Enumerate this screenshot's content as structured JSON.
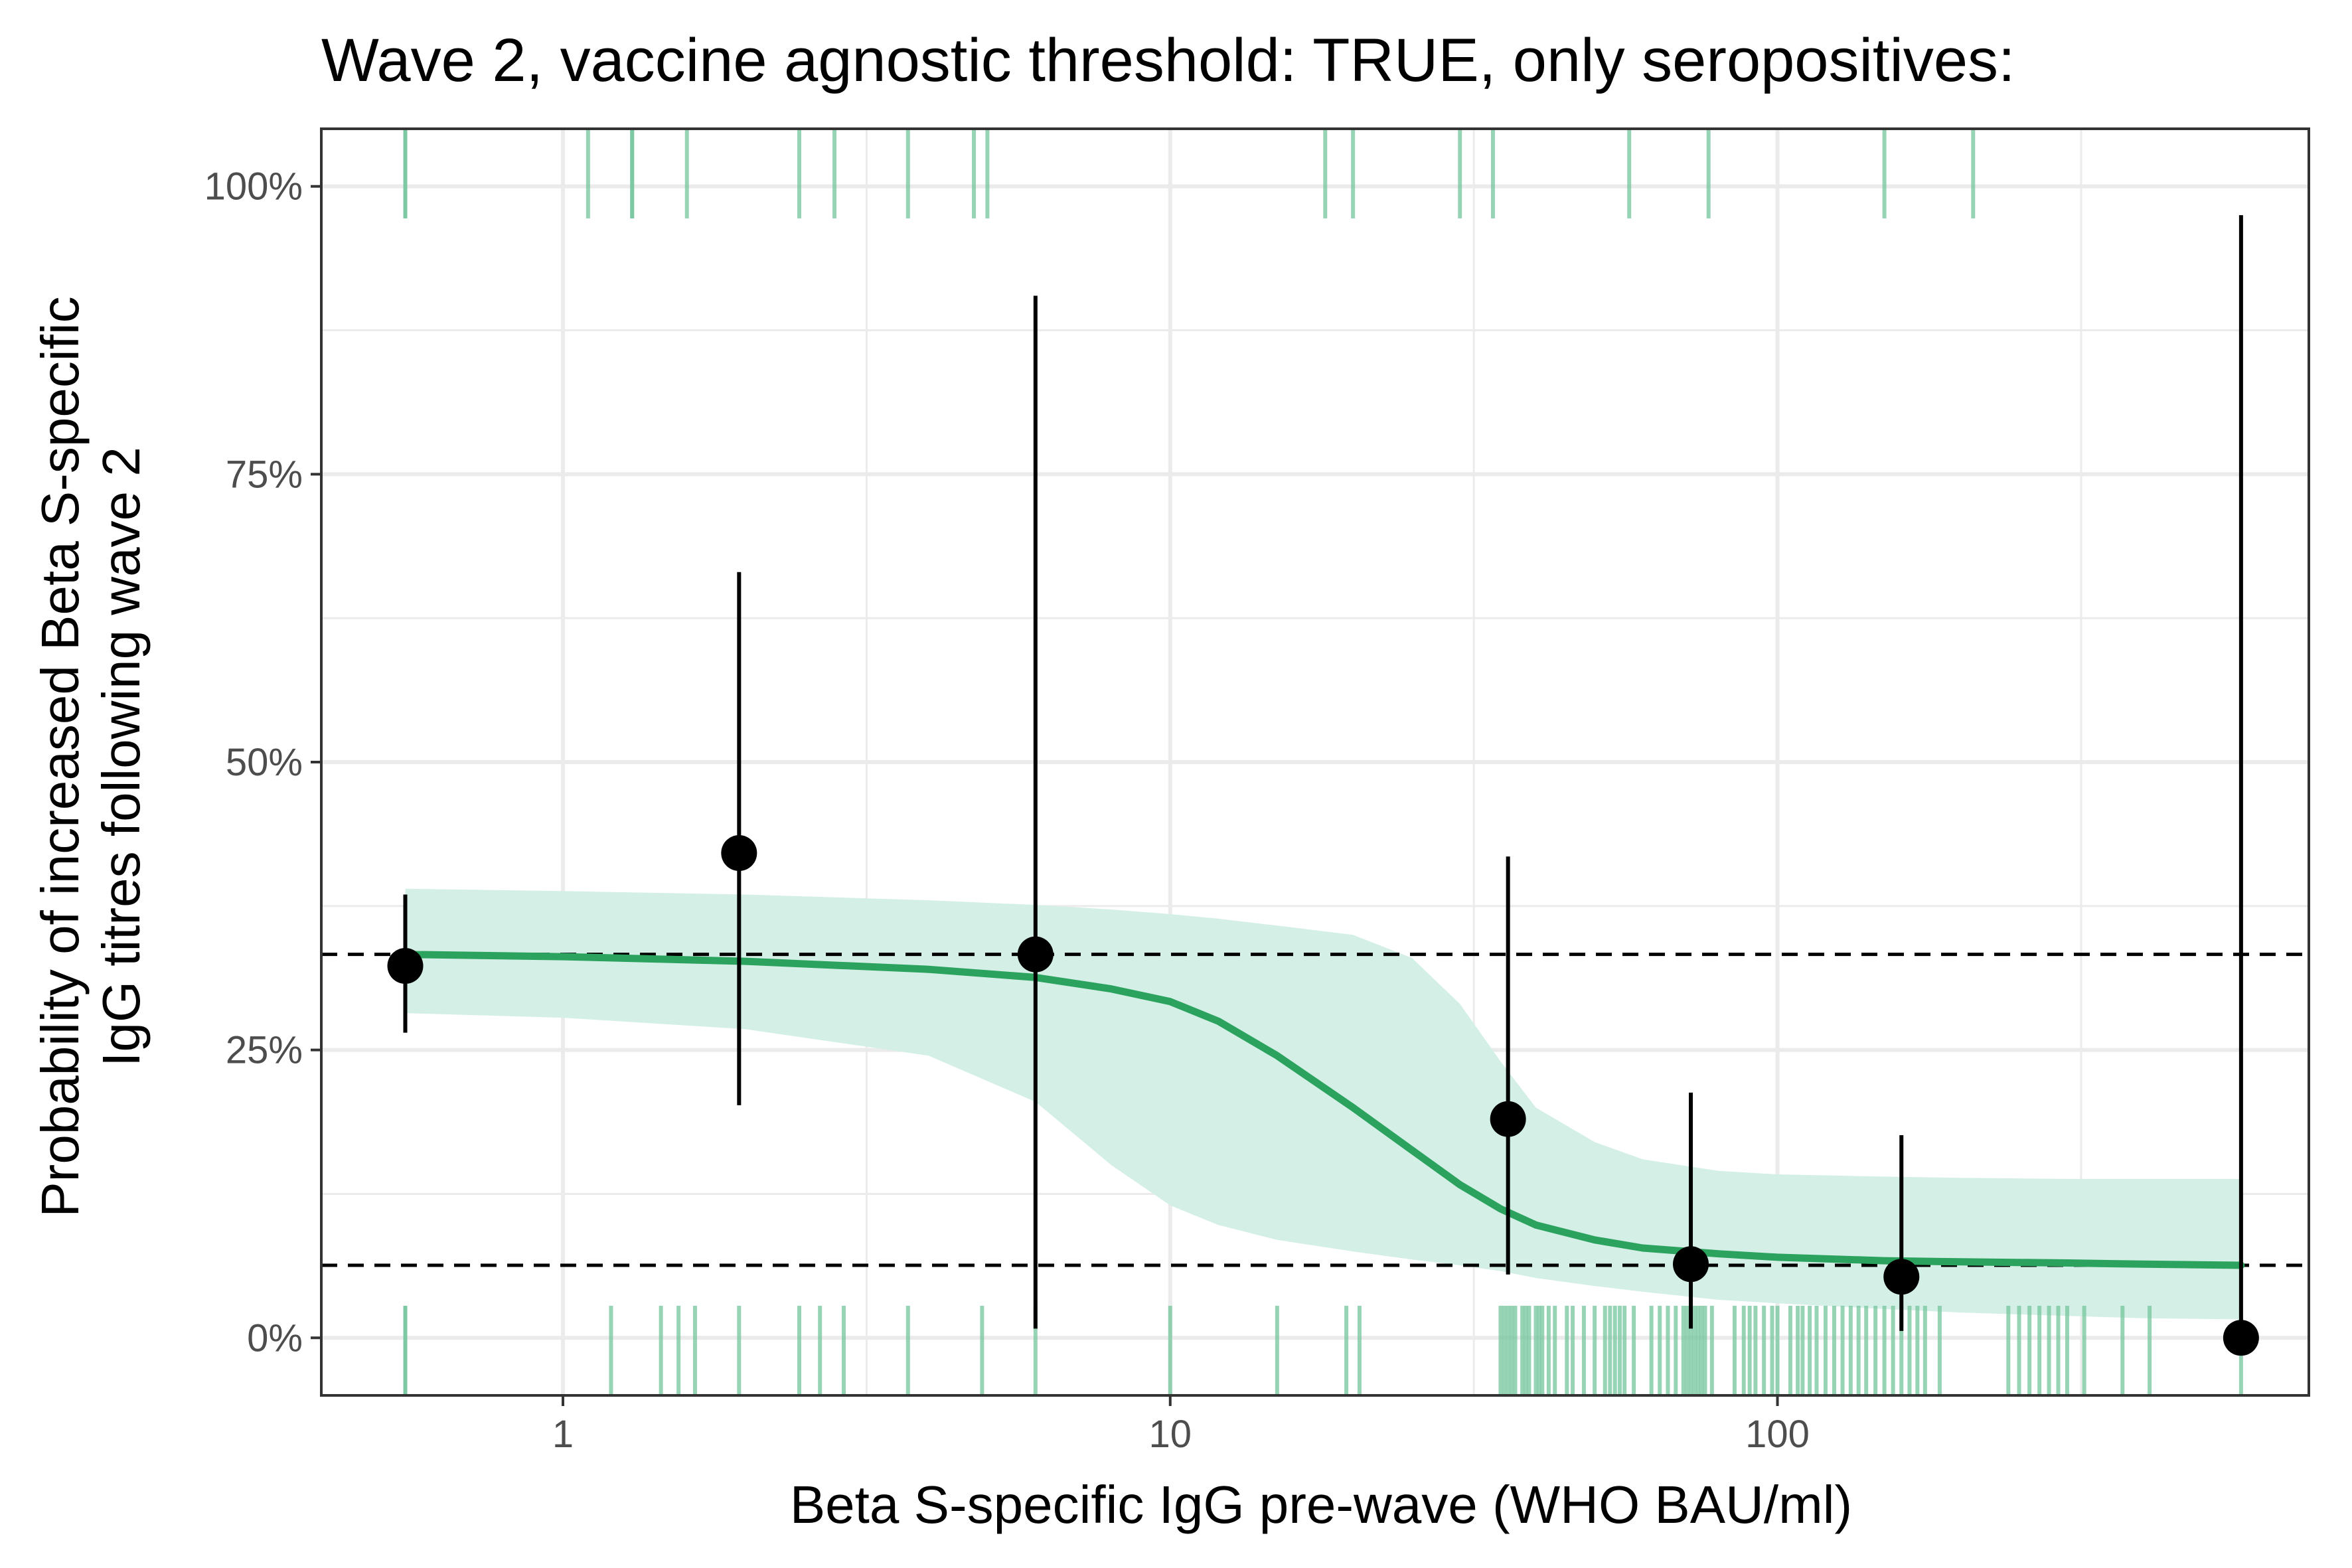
{
  "chart_data": {
    "type": "scatter",
    "title": "Wave 2, vaccine agnostic threshold: TRUE, only seropositives:",
    "xlabel": "Beta S-specific IgG pre-wave (WHO BAU/ml)",
    "ylabel_lines": [
      "Probability of increased Beta S-specific",
      "IgG titres following wave 2"
    ],
    "x_scale": "log10",
    "xlim": [
      0.4,
      750
    ],
    "ylim": [
      -0.05,
      1.05
    ],
    "x_ticks": [
      1,
      10,
      100
    ],
    "x_tick_labels": [
      "1",
      "10",
      "100"
    ],
    "y_ticks": [
      0,
      0.25,
      0.5,
      0.75,
      1.0
    ],
    "y_tick_labels": [
      "0%",
      "25%",
      "50%",
      "75%",
      "100%"
    ],
    "grid": true,
    "colors": {
      "fit_line": "#2ca25f",
      "ribbon": "#d4efe6",
      "rug": "#74c69d",
      "points": "#000000",
      "reference_lines": "#000000",
      "grid": "#ebebeb",
      "panel_border": "#333333"
    },
    "reference_lines": [
      0.333,
      0.063
    ],
    "binned_points": [
      {
        "x": 0.55,
        "y": 0.323,
        "ymin": 0.265,
        "ymax": 0.385
      },
      {
        "x": 1.95,
        "y": 0.421,
        "ymin": 0.202,
        "ymax": 0.665
      },
      {
        "x": 6.0,
        "y": 0.333,
        "ymin": 0.008,
        "ymax": 0.905
      },
      {
        "x": 36.0,
        "y": 0.19,
        "ymin": 0.055,
        "ymax": 0.418
      },
      {
        "x": 72.0,
        "y": 0.064,
        "ymin": 0.008,
        "ymax": 0.213
      },
      {
        "x": 160.0,
        "y": 0.053,
        "ymin": 0.006,
        "ymax": 0.176
      },
      {
        "x": 580.0,
        "y": 0.0,
        "ymin": 0.0,
        "ymax": 0.975
      }
    ],
    "fit_curve": {
      "x": [
        0.55,
        1,
        2,
        4,
        6,
        8,
        10,
        12,
        15,
        20,
        25,
        30,
        35,
        40,
        50,
        60,
        80,
        100,
        150,
        200,
        300,
        400,
        580
      ],
      "y": [
        0.333,
        0.331,
        0.327,
        0.32,
        0.313,
        0.303,
        0.292,
        0.275,
        0.245,
        0.2,
        0.163,
        0.133,
        0.112,
        0.098,
        0.085,
        0.078,
        0.073,
        0.07,
        0.067,
        0.066,
        0.065,
        0.064,
        0.063
      ],
      "ymin": [
        0.282,
        0.278,
        0.268,
        0.245,
        0.205,
        0.15,
        0.115,
        0.098,
        0.085,
        0.075,
        0.068,
        0.063,
        0.058,
        0.052,
        0.045,
        0.04,
        0.033,
        0.03,
        0.025,
        0.022,
        0.019,
        0.017,
        0.016
      ],
      "ymax": [
        0.39,
        0.388,
        0.385,
        0.38,
        0.376,
        0.372,
        0.368,
        0.364,
        0.358,
        0.35,
        0.33,
        0.29,
        0.24,
        0.2,
        0.17,
        0.155,
        0.145,
        0.142,
        0.14,
        0.139,
        0.138,
        0.138,
        0.138
      ]
    },
    "rug_top": [
      0.55,
      0.55,
      1.1,
      1.3,
      1.3,
      1.6,
      2.45,
      2.8,
      3.7,
      4.75,
      5.0,
      18,
      20,
      30,
      34,
      57,
      77,
      150,
      210
    ],
    "rug_bottom": [
      0.55,
      0.55,
      1.2,
      1.45,
      1.55,
      1.65,
      1.95,
      2.45,
      2.65,
      2.9,
      3.7,
      4.9,
      6.0,
      10.0,
      15.0,
      19.5,
      20.5,
      35,
      35.5,
      36,
      36.5,
      37,
      38,
      38.5,
      39,
      40,
      40.5,
      41,
      42,
      43,
      45,
      46,
      48,
      50,
      52,
      53,
      54,
      55,
      56,
      58,
      62,
      64,
      66,
      68,
      70,
      71,
      72,
      73,
      74,
      75,
      76,
      78,
      85,
      88,
      90,
      92,
      95,
      98,
      100,
      105,
      108,
      110,
      113,
      116,
      120,
      124,
      128,
      132,
      136,
      140,
      145,
      150,
      155,
      160,
      165,
      170,
      175,
      185,
      240,
      250,
      260,
      270,
      280,
      290,
      300,
      320,
      370,
      410,
      580
    ]
  }
}
